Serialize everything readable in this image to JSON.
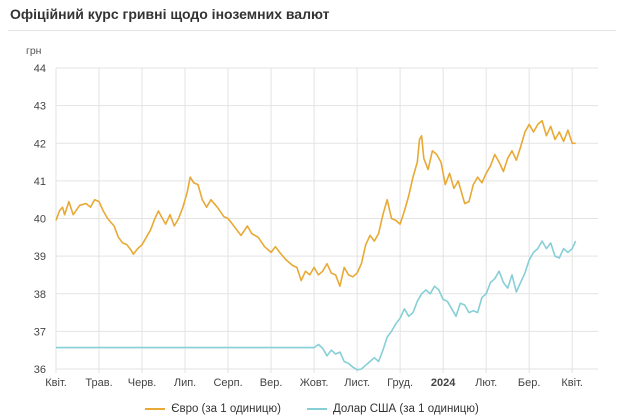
{
  "page": {
    "title": "Офіційний курс гривні щодо іноземних валют"
  },
  "colors": {
    "eur": "#e8a935",
    "usd": "#86cfd6",
    "grid": "#e3e3e3",
    "text": "#333333"
  },
  "chart_data": {
    "type": "line",
    "title": "Офіційний курс гривні щодо іноземних валют",
    "ylabel": "грн",
    "ylim": [
      36,
      44
    ],
    "yticks": [
      36,
      37,
      38,
      39,
      40,
      41,
      42,
      43,
      44
    ],
    "xlim": [
      0,
      12.6
    ],
    "x_ticks": [
      {
        "x": 0,
        "label": "Квіт."
      },
      {
        "x": 1,
        "label": "Трав."
      },
      {
        "x": 2,
        "label": "Черв."
      },
      {
        "x": 3,
        "label": "Лип."
      },
      {
        "x": 4,
        "label": "Серп."
      },
      {
        "x": 5,
        "label": "Вер."
      },
      {
        "x": 6,
        "label": "Жовт."
      },
      {
        "x": 7,
        "label": "Лист."
      },
      {
        "x": 8,
        "label": "Груд."
      },
      {
        "x": 9,
        "label": "2024",
        "bold": true
      },
      {
        "x": 10,
        "label": "Лют."
      },
      {
        "x": 11,
        "label": "Бер."
      },
      {
        "x": 12,
        "label": "Квіт."
      }
    ],
    "grid": true,
    "legend_position": "bottom",
    "series": [
      {
        "name": "Євро (за 1 одиницю)",
        "color": "#e8a935",
        "points": [
          [
            0,
            39.95
          ],
          [
            0.08,
            40.2
          ],
          [
            0.15,
            40.3
          ],
          [
            0.2,
            40.1
          ],
          [
            0.3,
            40.45
          ],
          [
            0.4,
            40.1
          ],
          [
            0.55,
            40.35
          ],
          [
            0.7,
            40.4
          ],
          [
            0.8,
            40.3
          ],
          [
            0.9,
            40.5
          ],
          [
            1.0,
            40.45
          ],
          [
            1.1,
            40.2
          ],
          [
            1.2,
            40.0
          ],
          [
            1.35,
            39.8
          ],
          [
            1.45,
            39.5
          ],
          [
            1.55,
            39.35
          ],
          [
            1.65,
            39.3
          ],
          [
            1.75,
            39.15
          ],
          [
            1.8,
            39.05
          ],
          [
            1.9,
            39.2
          ],
          [
            2.0,
            39.3
          ],
          [
            2.1,
            39.5
          ],
          [
            2.2,
            39.7
          ],
          [
            2.3,
            40.0
          ],
          [
            2.38,
            40.2
          ],
          [
            2.45,
            40.05
          ],
          [
            2.55,
            39.85
          ],
          [
            2.65,
            40.1
          ],
          [
            2.75,
            39.8
          ],
          [
            2.85,
            40.0
          ],
          [
            2.95,
            40.3
          ],
          [
            3.05,
            40.7
          ],
          [
            3.12,
            41.1
          ],
          [
            3.2,
            40.95
          ],
          [
            3.3,
            40.9
          ],
          [
            3.4,
            40.5
          ],
          [
            3.5,
            40.3
          ],
          [
            3.6,
            40.5
          ],
          [
            3.75,
            40.3
          ],
          [
            3.9,
            40.05
          ],
          [
            4.0,
            40.0
          ],
          [
            4.1,
            39.85
          ],
          [
            4.2,
            39.7
          ],
          [
            4.3,
            39.55
          ],
          [
            4.45,
            39.8
          ],
          [
            4.55,
            39.6
          ],
          [
            4.7,
            39.5
          ],
          [
            4.85,
            39.25
          ],
          [
            5.0,
            39.1
          ],
          [
            5.1,
            39.25
          ],
          [
            5.2,
            39.1
          ],
          [
            5.35,
            38.9
          ],
          [
            5.5,
            38.75
          ],
          [
            5.6,
            38.7
          ],
          [
            5.7,
            38.35
          ],
          [
            5.8,
            38.6
          ],
          [
            5.9,
            38.5
          ],
          [
            6.0,
            38.7
          ],
          [
            6.1,
            38.5
          ],
          [
            6.2,
            38.6
          ],
          [
            6.3,
            38.8
          ],
          [
            6.4,
            38.55
          ],
          [
            6.5,
            38.5
          ],
          [
            6.6,
            38.2
          ],
          [
            6.7,
            38.7
          ],
          [
            6.8,
            38.5
          ],
          [
            6.9,
            38.45
          ],
          [
            7.0,
            38.55
          ],
          [
            7.1,
            38.8
          ],
          [
            7.2,
            39.3
          ],
          [
            7.3,
            39.55
          ],
          [
            7.4,
            39.4
          ],
          [
            7.5,
            39.6
          ],
          [
            7.6,
            40.1
          ],
          [
            7.7,
            40.5
          ],
          [
            7.8,
            40.0
          ],
          [
            7.9,
            39.95
          ],
          [
            8.0,
            39.85
          ],
          [
            8.1,
            40.2
          ],
          [
            8.2,
            40.6
          ],
          [
            8.3,
            41.1
          ],
          [
            8.4,
            41.5
          ],
          [
            8.45,
            42.1
          ],
          [
            8.5,
            42.2
          ],
          [
            8.55,
            41.6
          ],
          [
            8.65,
            41.3
          ],
          [
            8.75,
            41.8
          ],
          [
            8.85,
            41.7
          ],
          [
            8.95,
            41.5
          ],
          [
            9.05,
            40.9
          ],
          [
            9.15,
            41.2
          ],
          [
            9.25,
            40.8
          ],
          [
            9.35,
            41.0
          ],
          [
            9.45,
            40.6
          ],
          [
            9.5,
            40.4
          ],
          [
            9.6,
            40.45
          ],
          [
            9.7,
            40.9
          ],
          [
            9.8,
            41.1
          ],
          [
            9.9,
            40.95
          ],
          [
            10.0,
            41.2
          ],
          [
            10.1,
            41.4
          ],
          [
            10.2,
            41.7
          ],
          [
            10.3,
            41.5
          ],
          [
            10.4,
            41.25
          ],
          [
            10.5,
            41.6
          ],
          [
            10.6,
            41.8
          ],
          [
            10.7,
            41.55
          ],
          [
            10.8,
            41.9
          ],
          [
            10.9,
            42.3
          ],
          [
            11.0,
            42.5
          ],
          [
            11.1,
            42.3
          ],
          [
            11.2,
            42.5
          ],
          [
            11.3,
            42.6
          ],
          [
            11.4,
            42.2
          ],
          [
            11.5,
            42.45
          ],
          [
            11.6,
            42.1
          ],
          [
            11.7,
            42.3
          ],
          [
            11.8,
            42.05
          ],
          [
            11.9,
            42.35
          ],
          [
            12.0,
            42.0
          ],
          [
            12.08,
            42.0
          ]
        ]
      },
      {
        "name": "Долар США (за 1 одиницю)",
        "color": "#86cfd6",
        "points": [
          [
            0,
            36.57
          ],
          [
            6.0,
            36.57
          ],
          [
            6.1,
            36.65
          ],
          [
            6.2,
            36.55
          ],
          [
            6.3,
            36.35
          ],
          [
            6.4,
            36.5
          ],
          [
            6.5,
            36.4
          ],
          [
            6.6,
            36.45
          ],
          [
            6.7,
            36.2
          ],
          [
            6.8,
            36.15
          ],
          [
            6.9,
            36.05
          ],
          [
            7.0,
            35.98
          ],
          [
            7.1,
            36.0
          ],
          [
            7.2,
            36.1
          ],
          [
            7.3,
            36.2
          ],
          [
            7.4,
            36.3
          ],
          [
            7.5,
            36.2
          ],
          [
            7.6,
            36.5
          ],
          [
            7.7,
            36.85
          ],
          [
            7.8,
            37.0
          ],
          [
            7.9,
            37.2
          ],
          [
            8.0,
            37.35
          ],
          [
            8.1,
            37.6
          ],
          [
            8.2,
            37.4
          ],
          [
            8.3,
            37.5
          ],
          [
            8.4,
            37.8
          ],
          [
            8.5,
            38.0
          ],
          [
            8.6,
            38.1
          ],
          [
            8.7,
            38.0
          ],
          [
            8.8,
            38.2
          ],
          [
            8.9,
            38.1
          ],
          [
            9.0,
            37.85
          ],
          [
            9.1,
            37.8
          ],
          [
            9.2,
            37.6
          ],
          [
            9.3,
            37.4
          ],
          [
            9.4,
            37.75
          ],
          [
            9.5,
            37.7
          ],
          [
            9.6,
            37.5
          ],
          [
            9.7,
            37.55
          ],
          [
            9.8,
            37.5
          ],
          [
            9.9,
            37.9
          ],
          [
            10.0,
            38.0
          ],
          [
            10.1,
            38.3
          ],
          [
            10.2,
            38.4
          ],
          [
            10.3,
            38.6
          ],
          [
            10.4,
            38.3
          ],
          [
            10.5,
            38.15
          ],
          [
            10.6,
            38.5
          ],
          [
            10.7,
            38.05
          ],
          [
            10.8,
            38.3
          ],
          [
            10.9,
            38.55
          ],
          [
            11.0,
            38.9
          ],
          [
            11.1,
            39.1
          ],
          [
            11.2,
            39.2
          ],
          [
            11.3,
            39.4
          ],
          [
            11.4,
            39.2
          ],
          [
            11.5,
            39.35
          ],
          [
            11.6,
            39.0
          ],
          [
            11.7,
            38.95
          ],
          [
            11.8,
            39.2
          ],
          [
            11.9,
            39.1
          ],
          [
            12.0,
            39.2
          ],
          [
            12.08,
            39.4
          ]
        ]
      }
    ]
  }
}
